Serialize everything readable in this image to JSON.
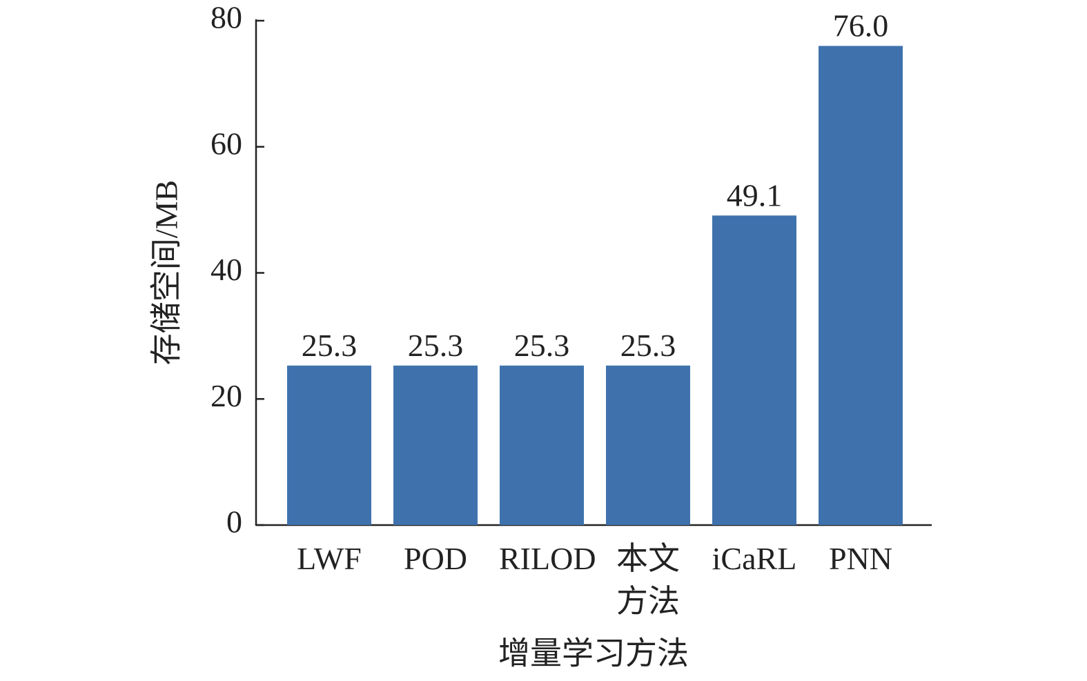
{
  "chart_data": {
    "type": "bar",
    "x_label": "增量学习方法",
    "y_label": "存储空间/MB",
    "categories": [
      "LWF",
      "POD",
      "RILOD",
      "本文方法",
      "iCaRL",
      "PNN"
    ],
    "values": [
      25.3,
      25.3,
      25.3,
      25.3,
      49.1,
      76.0
    ],
    "value_labels": [
      "25.3",
      "25.3",
      "25.3",
      "25.3",
      "49.1",
      "76.0"
    ],
    "color": "#3f72ad",
    "ylim": [
      0,
      80
    ],
    "yticks": [
      0,
      20,
      40,
      60,
      80
    ],
    "grid": false
  }
}
